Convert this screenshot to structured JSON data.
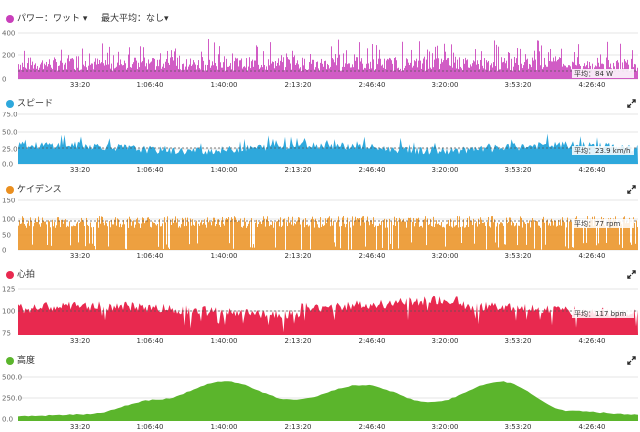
{
  "x_ticks": [
    "33:20",
    "1:06:40",
    "1:40:00",
    "2:13:20",
    "2:46:40",
    "3:20:00",
    "3:53:20",
    "4:26:40"
  ],
  "panels": [
    {
      "id": "power",
      "title": "パワー：ワット ▾",
      "subtitle": "最大平均：なし▾",
      "color": "#c93fbb",
      "show_expand": false,
      "y_ticks": [
        "400",
        "200",
        "0"
      ],
      "avg_label": "平均：84 W"
    },
    {
      "id": "speed",
      "title": "スピード",
      "color": "#2ea8dc",
      "show_expand": true,
      "y_ticks": [
        "75.0",
        "50.0",
        "25.0",
        "0.0"
      ],
      "avg_label": "平均：23.9 km/h"
    },
    {
      "id": "cadence",
      "title": "ケイデンス",
      "color": "#ea8f1f",
      "show_expand": true,
      "y_ticks": [
        "150",
        "100",
        "50",
        "0"
      ],
      "avg_label": "平均：77 rpm"
    },
    {
      "id": "heart",
      "title": "心拍",
      "color": "#e8294f",
      "show_expand": true,
      "y_ticks": [
        "125",
        "100",
        "75"
      ],
      "avg_label": "平均：117 bpm"
    },
    {
      "id": "elevation",
      "title": "高度",
      "color": "#5bb52c",
      "show_expand": true,
      "y_ticks": [
        "500.0",
        "250.0",
        "0.0"
      ],
      "avg_label": ""
    }
  ],
  "chart_data": [
    {
      "type": "bar",
      "title": "パワー：ワット",
      "ylim": [
        0,
        400
      ],
      "average": 84,
      "unit": "W"
    },
    {
      "type": "area",
      "title": "スピード",
      "ylim": [
        0,
        75
      ],
      "average": 23.9,
      "unit": "km/h"
    },
    {
      "type": "bar",
      "title": "ケイデンス",
      "ylim": [
        0,
        150
      ],
      "average": 77,
      "unit": "rpm"
    },
    {
      "type": "area",
      "title": "心拍",
      "ylim": [
        75,
        140
      ],
      "average": 117,
      "unit": "bpm"
    },
    {
      "type": "area",
      "title": "高度",
      "ylim": [
        0,
        500
      ],
      "x": [
        "0:00",
        "33:20",
        "1:06:40",
        "1:40:00",
        "2:13:20",
        "2:46:40",
        "3:20:00",
        "3:53:20",
        "4:26:40",
        "4:45:00"
      ],
      "values": [
        60,
        80,
        250,
        470,
        250,
        430,
        220,
        470,
        120,
        75
      ]
    }
  ]
}
